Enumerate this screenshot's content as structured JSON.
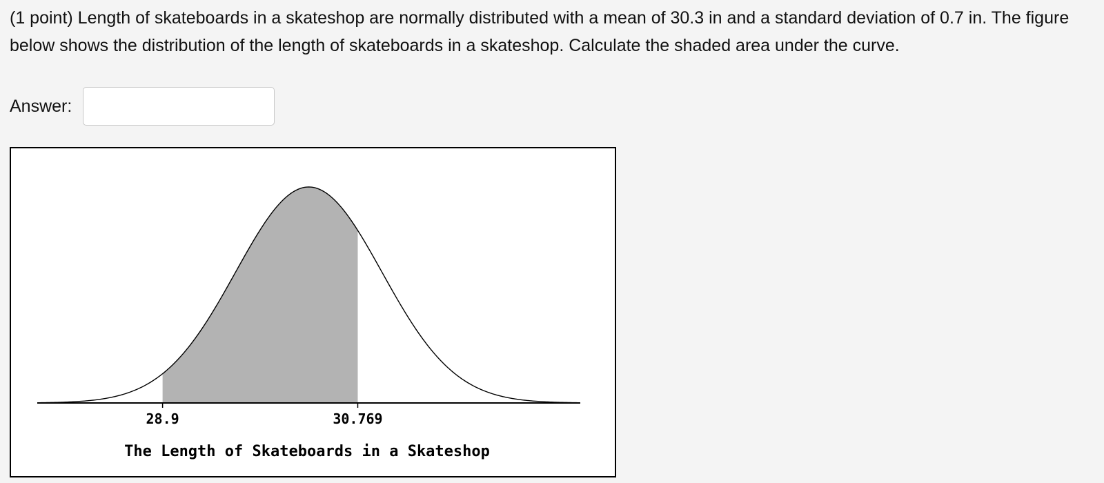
{
  "problem": {
    "prefix": "(1 point) ",
    "text": "Length of skateboards in a skateshop are normally distributed with a mean of 30.3 in and a standard deviation of 0.7 in. The figure below shows the distribution of the length of skateboards in a skateshop. Calculate the shaded area under the curve."
  },
  "answer": {
    "label": "Answer:",
    "value": "",
    "placeholder": ""
  },
  "chart_data": {
    "type": "area",
    "distribution": "normal",
    "mean": 30.3,
    "sd": 0.7,
    "xlim": [
      27.7,
      32.9
    ],
    "shaded_range": [
      28.9,
      30.769
    ],
    "tick_labels": [
      "28.9",
      "30.769"
    ],
    "xlabel": "The Length of Skateboards in a Skateshop",
    "colors": {
      "shade": "#b3b3b3",
      "curve": "#000000",
      "background": "#ffffff"
    }
  }
}
